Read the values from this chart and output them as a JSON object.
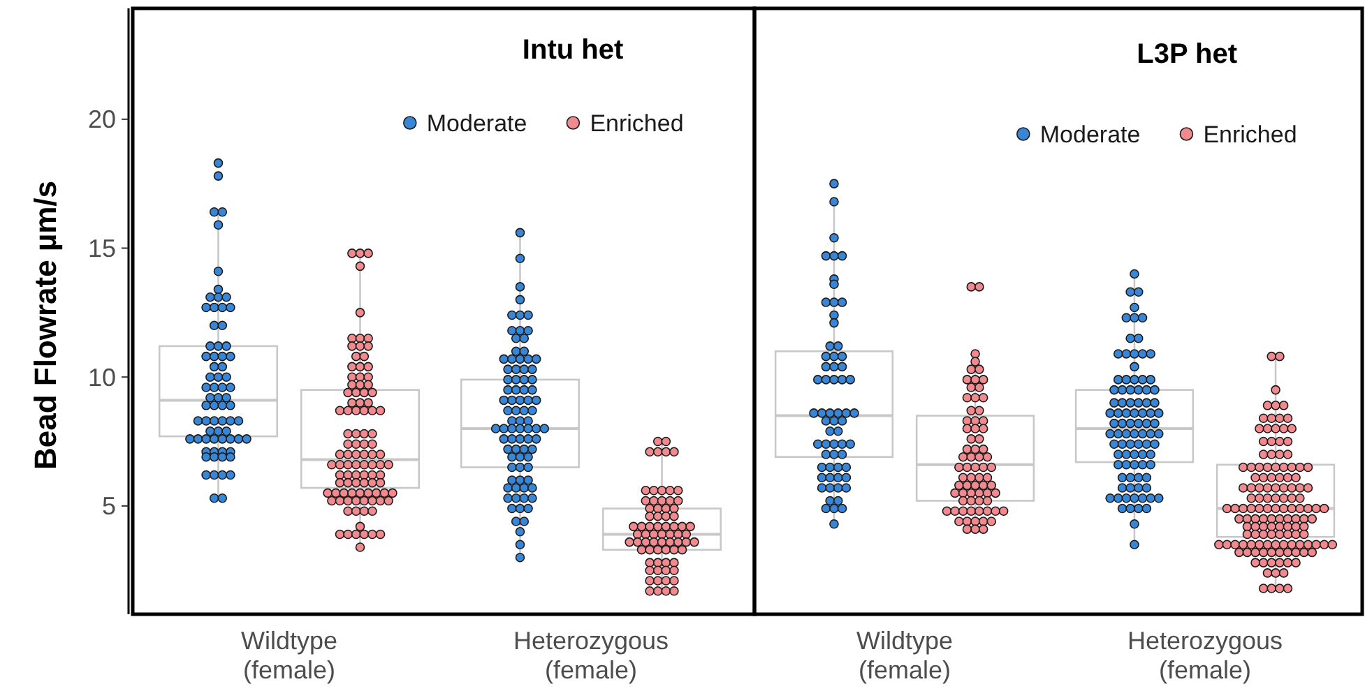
{
  "chart_data": [
    {
      "type": "box",
      "title": "Intu het",
      "ylabel": "Bead Flowrate µm/s",
      "categories": [
        "Wildtype\n(female)",
        "Heterozygous\n(female)"
      ],
      "ylim": [
        0.8,
        24.3
      ],
      "yticks": [
        5,
        10,
        15,
        20
      ],
      "legend": "top right",
      "series": [
        {
          "color": "#c8c8c8",
          "boxes": [
            {
              "low": 5.3,
              "q1": 7.7,
              "median": 9.1,
              "q3": 11.2,
              "high": 16.4
            },
            {
              "low": 3.0,
              "q1": 6.5,
              "median": 8.0,
              "q3": 9.9,
              "high": 15.6
            }
          ]
        },
        {
          "color": "#c8c8c8",
          "boxes": [
            {
              "low": 3.4,
              "q1": 5.7,
              "median": 6.8,
              "q3": 9.5,
              "high": 14.8
            },
            {
              "low": 1.7,
              "q1": 3.3,
              "median": 3.9,
              "q3": 4.9,
              "high": 7.5
            }
          ]
        },
        {
          "type": "scatter",
          "name": "Moderate",
          "color": "#3a86d6",
          "x": [
            "Wildtype\n(female)",
            "Wildtype\n(female)",
            "Wildtype\n(female)",
            "Wildtype\n(female)",
            "Wildtype\n(female)",
            "Wildtype\n(female)",
            "Wildtype\n(female)",
            "Wildtype\n(female)",
            "Wildtype\n(female)",
            "Wildtype\n(female)",
            "Wildtype\n(female)",
            "Wildtype\n(female)",
            "Wildtype\n(female)",
            "Wildtype\n(female)",
            "Wildtype\n(female)",
            "Wildtype\n(female)",
            "Wildtype\n(female)",
            "Wildtype\n(female)",
            "Wildtype\n(female)",
            "Wildtype\n(female)",
            "Wildtype\n(female)",
            "Wildtype\n(female)",
            "Wildtype\n(female)",
            "Wildtype\n(female)",
            "Wildtype\n(female)",
            "Wildtype\n(female)",
            "Wildtype\n(female)",
            "Wildtype\n(female)",
            "Wildtype\n(female)",
            "Wildtype\n(female)",
            "Wildtype\n(female)",
            "Wildtype\n(female)",
            "Wildtype\n(female)",
            "Wildtype\n(female)",
            "Wildtype\n(female)",
            "Wildtype\n(female)",
            "Wildtype\n(female)",
            "Wildtype\n(female)",
            "Wildtype\n(female)",
            "Wildtype\n(female)",
            "Wildtype\n(female)",
            "Wildtype\n(female)",
            "Wildtype\n(female)",
            "Wildtype\n(female)",
            "Wildtype\n(female)",
            "Wildtype\n(female)",
            "Wildtype\n(female)",
            "Wildtype\n(female)",
            "Wildtype\n(female)",
            "Wildtype\n(female)",
            "Wildtype\n(female)",
            "Wildtype\n(female)",
            "Wildtype\n(female)",
            "Wildtype\n(female)",
            "Wildtype\n(female)",
            "Wildtype\n(female)",
            "Wildtype\n(female)",
            "Wildtype\n(female)",
            "Wildtype\n(female)",
            "Wildtype\n(female)",
            "Wildtype\n(female)",
            "Wildtype\n(female)",
            "Wildtype\n(female)",
            "Wildtype\n(female)",
            "Wildtype\n(female)",
            "Wildtype\n(female)",
            "Wildtype\n(female)",
            "Wildtype\n(female)",
            "Wildtype\n(female)",
            "Wildtype\n(female)",
            "Heterozygous\n(female)",
            "Heterozygous\n(female)",
            "Heterozygous\n(female)",
            "Heterozygous\n(female)",
            "Heterozygous\n(female)",
            "Heterozygous\n(female)",
            "Heterozygous\n(female)",
            "Heterozygous\n(female)",
            "Heterozygous\n(female)",
            "Heterozygous\n(female)",
            "Heterozygous\n(female)",
            "Heterozygous\n(female)",
            "Heterozygous\n(female)",
            "Heterozygous\n(female)",
            "Heterozygous\n(female)",
            "Heterozygous\n(female)",
            "Heterozygous\n(female)",
            "Heterozygous\n(female)",
            "Heterozygous\n(female)",
            "Heterozygous\n(female)",
            "Heterozygous\n(female)",
            "Heterozygous\n(female)",
            "Heterozygous\n(female)",
            "Heterozygous\n(female)",
            "Heterozygous\n(female)",
            "Heterozygous\n(female)",
            "Heterozygous\n(female)",
            "Heterozygous\n(female)",
            "Heterozygous\n(female)",
            "Heterozygous\n(female)",
            "Heterozygous\n(female)",
            "Heterozygous\n(female)",
            "Heterozygous\n(female)",
            "Heterozygous\n(female)",
            "Heterozygous\n(female)",
            "Heterozygous\n(female)",
            "Heterozygous\n(female)",
            "Heterozygous\n(female)",
            "Heterozygous\n(female)",
            "Heterozygous\n(female)",
            "Heterozygous\n(female)",
            "Heterozygous\n(female)",
            "Heterozygous\n(female)",
            "Heterozygous\n(female)",
            "Heterozygous\n(female)",
            "Heterozygous\n(female)",
            "Heterozygous\n(female)",
            "Heterozygous\n(female)",
            "Heterozygous\n(female)",
            "Heterozygous\n(female)",
            "Heterozygous\n(female)",
            "Heterozygous\n(female)",
            "Heterozygous\n(female)",
            "Heterozygous\n(female)",
            "Heterozygous\n(female)",
            "Heterozygous\n(female)",
            "Heterozygous\n(female)",
            "Heterozygous\n(female)",
            "Heterozygous\n(female)",
            "Heterozygous\n(female)",
            "Heterozygous\n(female)",
            "Heterozygous\n(female)",
            "Heterozygous\n(female)",
            "Heterozygous\n(female)",
            "Heterozygous\n(female)",
            "Heterozygous\n(female)",
            "Heterozygous\n(female)",
            "Heterozygous\n(female)",
            "Heterozygous\n(female)",
            "Heterozygous\n(female)",
            "Heterozygous\n(female)",
            "Heterozygous\n(female)",
            "Heterozygous\n(female)",
            "Heterozygous\n(female)",
            "Heterozygous\n(female)",
            "Heterozygous\n(female)",
            "Heterozygous\n(female)",
            "Heterozygous\n(female)",
            "Heterozygous\n(female)",
            "Heterozygous\n(female)",
            "Heterozygous\n(female)",
            "Heterozygous\n(female)",
            "Heterozygous\n(female)",
            "Heterozygous\n(female)"
          ],
          "values": [
            18.3,
            17.8,
            16.4,
            16.4,
            15.9,
            14.1,
            13.4,
            13.1,
            13.1,
            13.1,
            12.7,
            12.7,
            12.7,
            12.7,
            12.0,
            12.0,
            11.2,
            11.2,
            11.2,
            10.8,
            10.8,
            10.8,
            10.8,
            10.4,
            10.4,
            10.0,
            10.0,
            10.0,
            9.6,
            9.6,
            9.6,
            9.6,
            9.2,
            9.2,
            9.2,
            8.9,
            8.9,
            8.9,
            8.9,
            8.3,
            8.3,
            8.3,
            8.3,
            8.3,
            8.3,
            7.9,
            7.9,
            7.9,
            7.6,
            7.6,
            7.6,
            7.6,
            7.6,
            7.6,
            7.6,
            7.6,
            7.1,
            7.1,
            7.1,
            7.1,
            6.9,
            6.9,
            6.9,
            6.9,
            6.2,
            6.2,
            6.2,
            6.2,
            5.3,
            5.3,
            15.6,
            14.6,
            13.5,
            13.0,
            12.4,
            12.4,
            12.4,
            11.8,
            11.8,
            11.8,
            11.5,
            11.5,
            11.0,
            11.0,
            10.7,
            10.7,
            10.7,
            10.7,
            10.7,
            10.3,
            10.3,
            10.3,
            10.3,
            9.9,
            9.9,
            9.9,
            9.9,
            9.5,
            9.5,
            9.5,
            9.5,
            9.1,
            9.1,
            9.1,
            9.1,
            9.1,
            8.7,
            8.7,
            8.7,
            8.7,
            8.3,
            8.3,
            8.3,
            8.0,
            8.0,
            8.0,
            8.0,
            8.0,
            8.0,
            8.0,
            7.6,
            7.6,
            7.6,
            7.6,
            7.6,
            7.2,
            7.2,
            7.2,
            7.2,
            6.9,
            6.9,
            6.9,
            6.5,
            6.5,
            6.5,
            6.0,
            6.0,
            6.0,
            5.7,
            5.7,
            5.7,
            5.7,
            5.3,
            5.3,
            5.3,
            5.3,
            4.9,
            4.9,
            4.9,
            4.4,
            4.4,
            4.0,
            3.5,
            3.0
          ]
        },
        {
          "type": "scatter",
          "name": "Enriched",
          "color": "#f08a8f",
          "x": [
            "Wildtype\n(female)",
            "Wildtype\n(female)",
            "Wildtype\n(female)",
            "Wildtype\n(female)",
            "Wildtype\n(female)",
            "Wildtype\n(female)",
            "Wildtype\n(female)",
            "Wildtype\n(female)",
            "Wildtype\n(female)",
            "Wildtype\n(female)",
            "Wildtype\n(female)",
            "Wildtype\n(female)",
            "Wildtype\n(female)",
            "Wildtype\n(female)",
            "Wildtype\n(female)",
            "Wildtype\n(female)",
            "Wildtype\n(female)",
            "Wildtype\n(female)",
            "Wildtype\n(female)",
            "Wildtype\n(female)",
            "Wildtype\n(female)",
            "Wildtype\n(female)",
            "Wildtype\n(female)",
            "Wildtype\n(female)",
            "Wildtype\n(female)",
            "Wildtype\n(female)",
            "Wildtype\n(female)",
            "Wildtype\n(female)",
            "Wildtype\n(female)",
            "Wildtype\n(female)",
            "Wildtype\n(female)",
            "Wildtype\n(female)",
            "Wildtype\n(female)",
            "Wildtype\n(female)",
            "Wildtype\n(female)",
            "Wildtype\n(female)",
            "Wildtype\n(female)",
            "Wildtype\n(female)",
            "Wildtype\n(female)",
            "Wildtype\n(female)",
            "Wildtype\n(female)",
            "Wildtype\n(female)",
            "Wildtype\n(female)",
            "Wildtype\n(female)",
            "Wildtype\n(female)",
            "Wildtype\n(female)",
            "Wildtype\n(female)",
            "Wildtype\n(female)",
            "Wildtype\n(female)",
            "Wildtype\n(female)",
            "Wildtype\n(female)",
            "Wildtype\n(female)",
            "Wildtype\n(female)",
            "Wildtype\n(female)",
            "Wildtype\n(female)",
            "Wildtype\n(female)",
            "Wildtype\n(female)",
            "Wildtype\n(female)",
            "Wildtype\n(female)",
            "Wildtype\n(female)",
            "Wildtype\n(female)",
            "Wildtype\n(female)",
            "Wildtype\n(female)",
            "Wildtype\n(female)",
            "Wildtype\n(female)",
            "Wildtype\n(female)",
            "Wildtype\n(female)",
            "Wildtype\n(female)",
            "Wildtype\n(female)",
            "Wildtype\n(female)",
            "Wildtype\n(female)",
            "Wildtype\n(female)",
            "Wildtype\n(female)",
            "Wildtype\n(female)",
            "Wildtype\n(female)",
            "Wildtype\n(female)",
            "Wildtype\n(female)",
            "Wildtype\n(female)",
            "Wildtype\n(female)",
            "Wildtype\n(female)",
            "Wildtype\n(female)",
            "Wildtype\n(female)",
            "Wildtype\n(female)",
            "Wildtype\n(female)",
            "Wildtype\n(female)",
            "Wildtype\n(female)",
            "Wildtype\n(female)",
            "Wildtype\n(female)",
            "Wildtype\n(female)",
            "Wildtype\n(female)",
            "Wildtype\n(female)",
            "Wildtype\n(female)",
            "Wildtype\n(female)",
            "Wildtype\n(female)",
            "Wildtype\n(female)",
            "Wildtype\n(female)",
            "Wildtype\n(female)",
            "Wildtype\n(female)",
            "Heterozygous\n(female)",
            "Heterozygous\n(female)",
            "Heterozygous\n(female)",
            "Heterozygous\n(female)",
            "Heterozygous\n(female)",
            "Heterozygous\n(female)",
            "Heterozygous\n(female)",
            "Heterozygous\n(female)",
            "Heterozygous\n(female)",
            "Heterozygous\n(female)",
            "Heterozygous\n(female)",
            "Heterozygous\n(female)",
            "Heterozygous\n(female)",
            "Heterozygous\n(female)",
            "Heterozygous\n(female)",
            "Heterozygous\n(female)",
            "Heterozygous\n(female)",
            "Heterozygous\n(female)",
            "Heterozygous\n(female)",
            "Heterozygous\n(female)",
            "Heterozygous\n(female)",
            "Heterozygous\n(female)",
            "Heterozygous\n(female)",
            "Heterozygous\n(female)",
            "Heterozygous\n(female)",
            "Heterozygous\n(female)",
            "Heterozygous\n(female)",
            "Heterozygous\n(female)",
            "Heterozygous\n(female)",
            "Heterozygous\n(female)",
            "Heterozygous\n(female)",
            "Heterozygous\n(female)",
            "Heterozygous\n(female)",
            "Heterozygous\n(female)",
            "Heterozygous\n(female)",
            "Heterozygous\n(female)",
            "Heterozygous\n(female)",
            "Heterozygous\n(female)",
            "Heterozygous\n(female)",
            "Heterozygous\n(female)",
            "Heterozygous\n(female)",
            "Heterozygous\n(female)",
            "Heterozygous\n(female)",
            "Heterozygous\n(female)",
            "Heterozygous\n(female)",
            "Heterozygous\n(female)",
            "Heterozygous\n(female)",
            "Heterozygous\n(female)",
            "Heterozygous\n(female)",
            "Heterozygous\n(female)",
            "Heterozygous\n(female)",
            "Heterozygous\n(female)",
            "Heterozygous\n(female)",
            "Heterozygous\n(female)",
            "Heterozygous\n(female)",
            "Heterozygous\n(female)",
            "Heterozygous\n(female)",
            "Heterozygous\n(female)",
            "Heterozygous\n(female)",
            "Heterozygous\n(female)",
            "Heterozygous\n(female)",
            "Heterozygous\n(female)",
            "Heterozygous\n(female)",
            "Heterozygous\n(female)",
            "Heterozygous\n(female)",
            "Heterozygous\n(female)",
            "Heterozygous\n(female)",
            "Heterozygous\n(female)",
            "Heterozygous\n(female)",
            "Heterozygous\n(female)"
          ],
          "values": [
            14.8,
            14.8,
            14.8,
            14.3,
            12.5,
            11.5,
            11.5,
            11.5,
            11.2,
            11.2,
            11.2,
            10.8,
            10.8,
            10.4,
            10.4,
            10.4,
            10.0,
            10.0,
            10.0,
            9.7,
            9.7,
            9.7,
            9.4,
            9.4,
            9.4,
            9.4,
            9.0,
            9.0,
            9.0,
            8.7,
            8.7,
            8.7,
            8.7,
            8.7,
            8.7,
            7.8,
            7.8,
            7.8,
            7.8,
            7.4,
            7.4,
            7.4,
            7.4,
            7.0,
            7.0,
            7.0,
            7.0,
            7.0,
            7.0,
            6.6,
            6.6,
            6.6,
            6.6,
            6.6,
            6.6,
            6.6,
            6.6,
            6.2,
            6.2,
            6.2,
            6.2,
            6.2,
            6.2,
            5.9,
            5.9,
            5.9,
            5.9,
            5.9,
            5.9,
            5.5,
            5.5,
            5.5,
            5.5,
            5.5,
            5.5,
            5.5,
            5.5,
            5.5,
            5.2,
            5.2,
            5.2,
            5.2,
            5.2,
            5.2,
            5.2,
            5.2,
            4.8,
            4.8,
            4.8,
            4.8,
            4.2,
            3.9,
            3.9,
            3.9,
            3.9,
            3.9,
            3.9,
            3.4,
            7.5,
            7.5,
            7.1,
            7.1,
            7.1,
            7.1,
            5.6,
            5.6,
            5.6,
            5.6,
            5.6,
            5.2,
            5.2,
            5.2,
            5.2,
            5.2,
            4.9,
            4.9,
            4.9,
            4.9,
            4.6,
            4.6,
            4.6,
            4.6,
            4.2,
            4.2,
            4.2,
            4.2,
            4.2,
            4.2,
            4.2,
            4.2,
            3.9,
            3.9,
            3.9,
            3.9,
            3.9,
            3.9,
            3.9,
            3.6,
            3.6,
            3.6,
            3.6,
            3.6,
            3.6,
            3.6,
            3.6,
            3.6,
            3.3,
            3.3,
            3.3,
            3.3,
            3.3,
            3.3,
            2.8,
            2.8,
            2.8,
            2.8,
            2.5,
            2.5,
            2.5,
            2.5,
            2.1,
            2.1,
            2.1,
            2.1,
            1.7,
            1.7,
            1.7,
            1.7
          ]
        }
      ]
    },
    {
      "type": "box",
      "title": "L3P het",
      "categories": [
        "Wildtype\n(female)",
        "Heterozygous\n(female)"
      ],
      "ylim": [
        0.8,
        24.3
      ],
      "tick_labels": "x",
      "legend": "top right",
      "series": [
        {
          "color": "#c8c8c8",
          "boxes": [
            {
              "low": 4.3,
              "q1": 6.9,
              "median": 8.5,
              "q3": 11.0,
              "high": 16.8
            },
            {
              "low": 3.5,
              "q1": 6.7,
              "median": 8.0,
              "q3": 9.5,
              "high": 14.0
            }
          ]
        },
        {
          "color": "#c8c8c8",
          "boxes": [
            {
              "low": 4.1,
              "q1": 5.2,
              "median": 6.6,
              "q3": 8.5,
              "high": 10.9
            },
            {
              "low": 1.8,
              "q1": 3.8,
              "median": 4.9,
              "q3": 6.6,
              "high": 10.8
            }
          ]
        },
        {
          "type": "scatter",
          "name": "Moderate",
          "color": "#3a86d6",
          "x": [
            "Wildtype\n(female)",
            "Wildtype\n(female)",
            "Wildtype\n(female)",
            "Wildtype\n(female)",
            "Wildtype\n(female)",
            "Wildtype\n(female)",
            "Wildtype\n(female)",
            "Wildtype\n(female)",
            "Wildtype\n(female)",
            "Wildtype\n(female)",
            "Wildtype\n(female)",
            "Wildtype\n(female)",
            "Wildtype\n(female)",
            "Wildtype\n(female)",
            "Wildtype\n(female)",
            "Wildtype\n(female)",
            "Wildtype\n(female)",
            "Wildtype\n(female)",
            "Wildtype\n(female)",
            "Wildtype\n(female)",
            "Wildtype\n(female)",
            "Wildtype\n(female)",
            "Wildtype\n(female)",
            "Wildtype\n(female)",
            "Wildtype\n(female)",
            "Wildtype\n(female)",
            "Wildtype\n(female)",
            "Wildtype\n(female)",
            "Wildtype\n(female)",
            "Wildtype\n(female)",
            "Wildtype\n(female)",
            "Wildtype\n(female)",
            "Wildtype\n(female)",
            "Wildtype\n(female)",
            "Wildtype\n(female)",
            "Wildtype\n(female)",
            "Wildtype\n(female)",
            "Wildtype\n(female)",
            "Wildtype\n(female)",
            "Wildtype\n(female)",
            "Wildtype\n(female)",
            "Wildtype\n(female)",
            "Wildtype\n(female)",
            "Wildtype\n(female)",
            "Wildtype\n(female)",
            "Wildtype\n(female)",
            "Wildtype\n(female)",
            "Wildtype\n(female)",
            "Wildtype\n(female)",
            "Wildtype\n(female)",
            "Wildtype\n(female)",
            "Wildtype\n(female)",
            "Wildtype\n(female)",
            "Wildtype\n(female)",
            "Wildtype\n(female)",
            "Wildtype\n(female)",
            "Wildtype\n(female)",
            "Wildtype\n(female)",
            "Wildtype\n(female)",
            "Wildtype\n(female)",
            "Wildtype\n(female)",
            "Wildtype\n(female)",
            "Wildtype\n(female)",
            "Heterozygous\n(female)",
            "Heterozygous\n(female)",
            "Heterozygous\n(female)",
            "Heterozygous\n(female)",
            "Heterozygous\n(female)",
            "Heterozygous\n(female)",
            "Heterozygous\n(female)",
            "Heterozygous\n(female)",
            "Heterozygous\n(female)",
            "Heterozygous\n(female)",
            "Heterozygous\n(female)",
            "Heterozygous\n(female)",
            "Heterozygous\n(female)",
            "Heterozygous\n(female)",
            "Heterozygous\n(female)",
            "Heterozygous\n(female)",
            "Heterozygous\n(female)",
            "Heterozygous\n(female)",
            "Heterozygous\n(female)",
            "Heterozygous\n(female)",
            "Heterozygous\n(female)",
            "Heterozygous\n(female)",
            "Heterozygous\n(female)",
            "Heterozygous\n(female)",
            "Heterozygous\n(female)",
            "Heterozygous\n(female)",
            "Heterozygous\n(female)",
            "Heterozygous\n(female)",
            "Heterozygous\n(female)",
            "Heterozygous\n(female)",
            "Heterozygous\n(female)",
            "Heterozygous\n(female)",
            "Heterozygous\n(female)",
            "Heterozygous\n(female)",
            "Heterozygous\n(female)",
            "Heterozygous\n(female)",
            "Heterozygous\n(female)",
            "Heterozygous\n(female)",
            "Heterozygous\n(female)",
            "Heterozygous\n(female)",
            "Heterozygous\n(female)",
            "Heterozygous\n(female)",
            "Heterozygous\n(female)",
            "Heterozygous\n(female)",
            "Heterozygous\n(female)",
            "Heterozygous\n(female)",
            "Heterozygous\n(female)",
            "Heterozygous\n(female)",
            "Heterozygous\n(female)",
            "Heterozygous\n(female)",
            "Heterozygous\n(female)",
            "Heterozygous\n(female)",
            "Heterozygous\n(female)",
            "Heterozygous\n(female)",
            "Heterozygous\n(female)",
            "Heterozygous\n(female)",
            "Heterozygous\n(female)",
            "Heterozygous\n(female)",
            "Heterozygous\n(female)",
            "Heterozygous\n(female)",
            "Heterozygous\n(female)",
            "Heterozygous\n(female)",
            "Heterozygous\n(female)",
            "Heterozygous\n(female)",
            "Heterozygous\n(female)",
            "Heterozygous\n(female)",
            "Heterozygous\n(female)",
            "Heterozygous\n(female)",
            "Heterozygous\n(female)",
            "Heterozygous\n(female)",
            "Heterozygous\n(female)",
            "Heterozygous\n(female)",
            "Heterozygous\n(female)",
            "Heterozygous\n(female)",
            "Heterozygous\n(female)",
            "Heterozygous\n(female)",
            "Heterozygous\n(female)",
            "Heterozygous\n(female)",
            "Heterozygous\n(female)",
            "Heterozygous\n(female)",
            "Heterozygous\n(female)",
            "Heterozygous\n(female)",
            "Heterozygous\n(female)",
            "Heterozygous\n(female)",
            "Heterozygous\n(female)",
            "Heterozygous\n(female)",
            "Heterozygous\n(female)",
            "Heterozygous\n(female)",
            "Heterozygous\n(female)"
          ],
          "values": [
            17.5,
            16.8,
            15.4,
            14.7,
            14.7,
            14.7,
            13.8,
            13.6,
            12.9,
            12.9,
            12.9,
            12.4,
            12.1,
            11.2,
            11.2,
            10.8,
            10.8,
            10.8,
            10.4,
            10.4,
            10.4,
            9.9,
            9.9,
            9.9,
            9.9,
            9.9,
            8.6,
            8.6,
            8.6,
            8.6,
            8.6,
            8.6,
            8.3,
            8.3,
            8.3,
            7.9,
            7.9,
            7.4,
            7.4,
            7.4,
            7.4,
            7.4,
            7.0,
            7.0,
            7.0,
            6.5,
            6.5,
            6.5,
            6.5,
            6.1,
            6.1,
            6.1,
            6.1,
            5.7,
            5.7,
            5.7,
            5.7,
            5.2,
            5.2,
            4.9,
            4.9,
            4.9,
            4.3,
            14.0,
            13.3,
            13.3,
            12.7,
            12.3,
            12.3,
            12.3,
            11.5,
            11.5,
            10.9,
            10.9,
            10.9,
            10.9,
            10.9,
            10.4,
            9.9,
            9.9,
            9.9,
            9.9,
            9.9,
            9.5,
            9.5,
            9.5,
            9.5,
            9.5,
            9.5,
            9.0,
            9.0,
            9.0,
            9.0,
            9.0,
            9.0,
            8.6,
            8.6,
            8.6,
            8.6,
            8.6,
            8.6,
            8.6,
            8.2,
            8.2,
            8.2,
            8.2,
            8.2,
            8.2,
            7.8,
            7.8,
            7.8,
            7.8,
            7.8,
            7.8,
            7.8,
            7.4,
            7.4,
            7.4,
            7.4,
            7.4,
            7.4,
            7.0,
            7.0,
            7.0,
            7.0,
            7.0,
            6.6,
            6.6,
            6.6,
            6.6,
            6.6,
            6.1,
            6.1,
            6.1,
            6.1,
            5.7,
            5.7,
            5.7,
            5.7,
            5.3,
            5.3,
            5.3,
            5.3,
            5.3,
            5.3,
            5.3,
            4.9,
            4.9,
            4.9,
            4.9,
            4.3,
            3.5
          ]
        },
        {
          "type": "scatter",
          "name": "Enriched",
          "color": "#f08a8f",
          "x": [
            "Wildtype\n(female)",
            "Wildtype\n(female)",
            "Wildtype\n(female)",
            "Wildtype\n(female)",
            "Wildtype\n(female)",
            "Wildtype\n(female)",
            "Wildtype\n(female)",
            "Wildtype\n(female)",
            "Wildtype\n(female)",
            "Wildtype\n(female)",
            "Wildtype\n(female)",
            "Wildtype\n(female)",
            "Wildtype\n(female)",
            "Wildtype\n(female)",
            "Wildtype\n(female)",
            "Wildtype\n(female)",
            "Wildtype\n(female)",
            "Wildtype\n(female)",
            "Wildtype\n(female)",
            "Wildtype\n(female)",
            "Wildtype\n(female)",
            "Wildtype\n(female)",
            "Wildtype\n(female)",
            "Wildtype\n(female)",
            "Wildtype\n(female)",
            "Wildtype\n(female)",
            "Wildtype\n(female)",
            "Wildtype\n(female)",
            "Wildtype\n(female)",
            "Wildtype\n(female)",
            "Wildtype\n(female)",
            "Wildtype\n(female)",
            "Wildtype\n(female)",
            "Wildtype\n(female)",
            "Wildtype\n(female)",
            "Wildtype\n(female)",
            "Wildtype\n(female)",
            "Wildtype\n(female)",
            "Wildtype\n(female)",
            "Wildtype\n(female)",
            "Wildtype\n(female)",
            "Wildtype\n(female)",
            "Wildtype\n(female)",
            "Wildtype\n(female)",
            "Wildtype\n(female)",
            "Wildtype\n(female)",
            "Wildtype\n(female)",
            "Wildtype\n(female)",
            "Wildtype\n(female)",
            "Wildtype\n(female)",
            "Wildtype\n(female)",
            "Wildtype\n(female)",
            "Wildtype\n(female)",
            "Wildtype\n(female)",
            "Wildtype\n(female)",
            "Wildtype\n(female)",
            "Wildtype\n(female)",
            "Wildtype\n(female)",
            "Wildtype\n(female)",
            "Wildtype\n(female)",
            "Wildtype\n(female)",
            "Wildtype\n(female)",
            "Wildtype\n(female)",
            "Wildtype\n(female)",
            "Wildtype\n(female)",
            "Wildtype\n(female)",
            "Wildtype\n(female)",
            "Wildtype\n(female)",
            "Wildtype\n(female)",
            "Wildtype\n(female)",
            "Wildtype\n(female)",
            "Heterozygous\n(female)",
            "Heterozygous\n(female)",
            "Heterozygous\n(female)",
            "Heterozygous\n(female)",
            "Heterozygous\n(female)",
            "Heterozygous\n(female)",
            "Heterozygous\n(female)",
            "Heterozygous\n(female)",
            "Heterozygous\n(female)",
            "Heterozygous\n(female)",
            "Heterozygous\n(female)",
            "Heterozygous\n(female)",
            "Heterozygous\n(female)",
            "Heterozygous\n(female)",
            "Heterozygous\n(female)",
            "Heterozygous\n(female)",
            "Heterozygous\n(female)",
            "Heterozygous\n(female)",
            "Heterozygous\n(female)",
            "Heterozygous\n(female)",
            "Heterozygous\n(female)",
            "Heterozygous\n(female)",
            "Heterozygous\n(female)",
            "Heterozygous\n(female)",
            "Heterozygous\n(female)",
            "Heterozygous\n(female)",
            "Heterozygous\n(female)",
            "Heterozygous\n(female)",
            "Heterozygous\n(female)",
            "Heterozygous\n(female)",
            "Heterozygous\n(female)",
            "Heterozygous\n(female)",
            "Heterozygous\n(female)",
            "Heterozygous\n(female)",
            "Heterozygous\n(female)",
            "Heterozygous\n(female)",
            "Heterozygous\n(female)",
            "Heterozygous\n(female)",
            "Heterozygous\n(female)",
            "Heterozygous\n(female)",
            "Heterozygous\n(female)",
            "Heterozygous\n(female)",
            "Heterozygous\n(female)",
            "Heterozygous\n(female)",
            "Heterozygous\n(female)",
            "Heterozygous\n(female)",
            "Heterozygous\n(female)",
            "Heterozygous\n(female)",
            "Heterozygous\n(female)",
            "Heterozygous\n(female)",
            "Heterozygous\n(female)",
            "Heterozygous\n(female)",
            "Heterozygous\n(female)",
            "Heterozygous\n(female)",
            "Heterozygous\n(female)",
            "Heterozygous\n(female)",
            "Heterozygous\n(female)",
            "Heterozygous\n(female)",
            "Heterozygous\n(female)",
            "Heterozygous\n(female)",
            "Heterozygous\n(female)",
            "Heterozygous\n(female)",
            "Heterozygous\n(female)",
            "Heterozygous\n(female)",
            "Heterozygous\n(female)",
            "Heterozygous\n(female)",
            "Heterozygous\n(female)",
            "Heterozygous\n(female)",
            "Heterozygous\n(female)",
            "Heterozygous\n(female)",
            "Heterozygous\n(female)",
            "Heterozygous\n(female)",
            "Heterozygous\n(female)",
            "Heterozygous\n(female)",
            "Heterozygous\n(female)",
            "Heterozygous\n(female)",
            "Heterozygous\n(female)",
            "Heterozygous\n(female)",
            "Heterozygous\n(female)",
            "Heterozygous\n(female)",
            "Heterozygous\n(female)",
            "Heterozygous\n(female)",
            "Heterozygous\n(female)",
            "Heterozygous\n(female)",
            "Heterozygous\n(female)",
            "Heterozygous\n(female)",
            "Heterozygous\n(female)",
            "Heterozygous\n(female)",
            "Heterozygous\n(female)",
            "Heterozygous\n(female)",
            "Heterozygous\n(female)",
            "Heterozygous\n(female)",
            "Heterozygous\n(female)",
            "Heterozygous\n(female)",
            "Heterozygous\n(female)",
            "Heterozygous\n(female)",
            "Heterozygous\n(female)",
            "Heterozygous\n(female)",
            "Heterozygous\n(female)",
            "Heterozygous\n(female)",
            "Heterozygous\n(female)",
            "Heterozygous\n(female)",
            "Heterozygous\n(female)",
            "Heterozygous\n(female)",
            "Heterozygous\n(female)",
            "Heterozygous\n(female)",
            "Heterozygous\n(female)",
            "Heterozygous\n(female)",
            "Heterozygous\n(female)",
            "Heterozygous\n(female)",
            "Heterozygous\n(female)",
            "Heterozygous\n(female)",
            "Heterozygous\n(female)",
            "Heterozygous\n(female)",
            "Heterozygous\n(female)",
            "Heterozygous\n(female)",
            "Heterozygous\n(female)",
            "Heterozygous\n(female)",
            "Heterozygous\n(female)",
            "Heterozygous\n(female)",
            "Heterozygous\n(female)",
            "Heterozygous\n(female)",
            "Heterozygous\n(female)",
            "Heterozygous\n(female)",
            "Heterozygous\n(female)",
            "Heterozygous\n(female)",
            "Heterozygous\n(female)",
            "Heterozygous\n(female)",
            "Heterozygous\n(female)",
            "Heterozygous\n(female)",
            "Heterozygous\n(female)"
          ],
          "values": [
            13.5,
            13.5,
            10.9,
            10.6,
            10.3,
            10.3,
            9.9,
            9.9,
            9.9,
            9.6,
            9.6,
            9.2,
            9.2,
            9.2,
            8.7,
            8.7,
            8.3,
            8.3,
            8.3,
            8.0,
            8.0,
            8.0,
            7.6,
            7.6,
            7.2,
            7.2,
            7.2,
            6.9,
            6.9,
            6.9,
            6.9,
            6.5,
            6.5,
            6.5,
            6.5,
            6.5,
            6.1,
            6.1,
            6.1,
            6.1,
            5.8,
            5.8,
            5.8,
            5.8,
            5.8,
            5.5,
            5.5,
            5.5,
            5.5,
            5.5,
            5.5,
            5.2,
            5.2,
            5.2,
            5.2,
            4.8,
            4.8,
            4.8,
            4.8,
            4.8,
            4.8,
            4.8,
            4.8,
            4.4,
            4.4,
            4.4,
            4.4,
            4.4,
            4.1,
            4.1,
            4.1,
            10.8,
            10.8,
            9.5,
            8.9,
            8.9,
            8.9,
            8.4,
            8.4,
            8.4,
            8.4,
            8.0,
            8.0,
            8.0,
            8.0,
            8.0,
            7.5,
            7.5,
            7.5,
            7.5,
            7.0,
            7.0,
            7.0,
            7.0,
            6.5,
            6.5,
            6.5,
            6.5,
            6.5,
            6.5,
            6.5,
            6.5,
            6.5,
            6.1,
            6.1,
            6.1,
            6.1,
            6.1,
            6.1,
            5.7,
            5.7,
            5.7,
            5.7,
            5.7,
            5.7,
            5.7,
            5.7,
            5.7,
            5.3,
            5.3,
            5.3,
            5.3,
            5.3,
            5.3,
            5.3,
            4.9,
            4.9,
            4.9,
            4.9,
            4.9,
            4.9,
            4.9,
            4.9,
            4.9,
            4.9,
            4.9,
            4.9,
            4.9,
            4.5,
            4.5,
            4.5,
            4.5,
            4.5,
            4.5,
            4.5,
            4.5,
            4.5,
            4.5,
            4.2,
            4.2,
            4.2,
            4.2,
            4.2,
            4.2,
            4.2,
            4.2,
            3.9,
            3.9,
            3.9,
            3.9,
            3.9,
            3.9,
            3.9,
            3.9,
            3.5,
            3.5,
            3.5,
            3.5,
            3.5,
            3.5,
            3.5,
            3.5,
            3.5,
            3.5,
            3.5,
            3.5,
            3.5,
            3.5,
            3.5,
            3.2,
            3.2,
            3.2,
            3.2,
            3.2,
            3.2,
            3.2,
            3.2,
            3.2,
            3.2,
            2.8,
            2.8,
            2.8,
            2.8,
            2.8,
            2.8,
            2.4,
            2.4,
            2.4,
            1.8,
            1.8,
            1.8,
            1.8
          ]
        }
      ]
    }
  ]
}
